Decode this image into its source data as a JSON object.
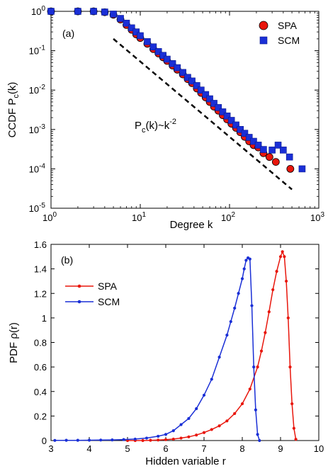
{
  "colors": {
    "spa": "#e8160c",
    "scm": "#1a2fd6",
    "edge": "#000000",
    "fit": "#000000"
  },
  "chart_data": [
    {
      "type": "scatter",
      "panel_label": "(a)",
      "xlabel": "Degree k",
      "ylabel": "CCDF P_c(k)",
      "x_scale": "log",
      "y_scale": "log",
      "xlim": [
        1,
        1000
      ],
      "ylim": [
        1e-05,
        1
      ],
      "x_ticks": [
        1,
        10,
        100,
        1000
      ],
      "x_tick_labels": [
        [
          "10",
          "0"
        ],
        [
          "10",
          "1"
        ],
        [
          "10",
          "2"
        ],
        [
          "10",
          "3"
        ]
      ],
      "y_ticks": [
        1e-05,
        0.0001,
        0.001,
        0.01,
        0.1,
        1
      ],
      "y_tick_labels": [
        [
          "10",
          "-5"
        ],
        [
          "10",
          "-4"
        ],
        [
          "10",
          "-3"
        ],
        [
          "10",
          "-2"
        ],
        [
          "10",
          "-1"
        ],
        [
          "10",
          "0"
        ]
      ],
      "legend_position": "top-right",
      "annotation": {
        "base": "P",
        "sub": "c",
        "mid": "(k)~k",
        "sup": "-2"
      },
      "reference_line": {
        "x": [
          5,
          500
        ],
        "y": [
          0.2,
          3e-05
        ],
        "style": "dashed"
      },
      "series": [
        {
          "name": "SPA",
          "marker": "circle",
          "x": [
            1,
            2,
            3,
            4,
            5,
            6,
            7,
            8,
            9,
            10,
            12,
            14,
            16,
            18,
            20,
            23,
            26,
            30,
            34,
            38,
            43,
            48,
            54,
            60,
            67,
            75,
            84,
            94,
            105,
            118,
            132,
            148,
            166,
            186,
            210,
            240,
            280,
            330,
            480
          ],
          "y": [
            1,
            1,
            1,
            0.95,
            0.82,
            0.62,
            0.45,
            0.34,
            0.26,
            0.21,
            0.15,
            0.11,
            0.085,
            0.068,
            0.055,
            0.042,
            0.033,
            0.025,
            0.019,
            0.015,
            0.011,
            0.0085,
            0.0065,
            0.005,
            0.0038,
            0.003,
            0.0023,
            0.0018,
            0.0014,
            0.0011,
            0.00085,
            0.00065,
            0.0005,
            0.0004,
            0.00035,
            0.00025,
            0.0002,
            0.00015,
            0.0001
          ]
        },
        {
          "name": "SCM",
          "marker": "square",
          "x": [
            1,
            2,
            3,
            4,
            5,
            6,
            7,
            8,
            9,
            10,
            12,
            14,
            16,
            18,
            20,
            23,
            26,
            30,
            34,
            38,
            43,
            48,
            54,
            60,
            67,
            75,
            84,
            94,
            105,
            118,
            132,
            148,
            166,
            186,
            210,
            240,
            300,
            350,
            400,
            470,
            650
          ],
          "y": [
            1,
            1,
            1,
            0.96,
            0.85,
            0.66,
            0.5,
            0.38,
            0.3,
            0.24,
            0.17,
            0.125,
            0.095,
            0.076,
            0.061,
            0.047,
            0.037,
            0.028,
            0.021,
            0.017,
            0.013,
            0.01,
            0.0077,
            0.006,
            0.0046,
            0.0036,
            0.0028,
            0.0022,
            0.0017,
            0.0013,
            0.001,
            0.0008,
            0.00063,
            0.0005,
            0.0004,
            0.00031,
            0.0003,
            0.0004,
            0.0003,
            0.0002,
            0.0001
          ]
        }
      ]
    },
    {
      "type": "line",
      "panel_label": "(b)",
      "xlabel": "Hidden variable r",
      "ylabel": "PDF ρ(r)",
      "xlim": [
        3,
        10
      ],
      "ylim": [
        0,
        1.6
      ],
      "x_ticks": [
        3,
        4,
        5,
        6,
        7,
        8,
        9,
        10
      ],
      "x_tick_labels": [
        "3",
        "4",
        "5",
        "6",
        "7",
        "8",
        "9",
        "10"
      ],
      "y_ticks": [
        0,
        0.2,
        0.4,
        0.6,
        0.8,
        1,
        1.2,
        1.4,
        1.6
      ],
      "y_tick_labels": [
        "0",
        "0.2",
        "0.4",
        "0.6",
        "0.8",
        "1",
        "1.2",
        "1.4",
        "1.6"
      ],
      "legend_position": "top-left",
      "series": [
        {
          "name": "SPA",
          "x": [
            5.0,
            5.2,
            5.4,
            5.6,
            5.8,
            6.0,
            6.2,
            6.4,
            6.6,
            6.8,
            7.0,
            7.2,
            7.4,
            7.6,
            7.8,
            8.0,
            8.2,
            8.4,
            8.5,
            8.6,
            8.7,
            8.8,
            8.9,
            9.0,
            9.05,
            9.1,
            9.15,
            9.2,
            9.25,
            9.3,
            9.35,
            9.4
          ],
          "y": [
            0,
            0,
            0,
            0.002,
            0.004,
            0.007,
            0.012,
            0.02,
            0.03,
            0.045,
            0.065,
            0.09,
            0.12,
            0.16,
            0.22,
            0.3,
            0.42,
            0.6,
            0.73,
            0.88,
            1.05,
            1.23,
            1.38,
            1.5,
            1.54,
            1.5,
            1.3,
            1.0,
            0.6,
            0.3,
            0.1,
            0.01
          ]
        },
        {
          "name": "SCM",
          "x": [
            3.1,
            3.4,
            3.7,
            4.0,
            4.3,
            4.6,
            4.9,
            5.2,
            5.5,
            5.8,
            6.0,
            6.2,
            6.4,
            6.6,
            6.8,
            7.0,
            7.2,
            7.4,
            7.6,
            7.7,
            7.8,
            7.9,
            8.0,
            8.05,
            8.1,
            8.15,
            8.2,
            8.25,
            8.3,
            8.35,
            8.4,
            8.45
          ],
          "y": [
            0.001,
            0.002,
            0.002,
            0.003,
            0.004,
            0.005,
            0.008,
            0.012,
            0.02,
            0.035,
            0.05,
            0.08,
            0.13,
            0.18,
            0.26,
            0.37,
            0.5,
            0.68,
            0.86,
            0.97,
            1.08,
            1.2,
            1.32,
            1.4,
            1.47,
            1.49,
            1.48,
            1.1,
            0.6,
            0.25,
            0.05,
            0.0
          ]
        }
      ]
    }
  ]
}
